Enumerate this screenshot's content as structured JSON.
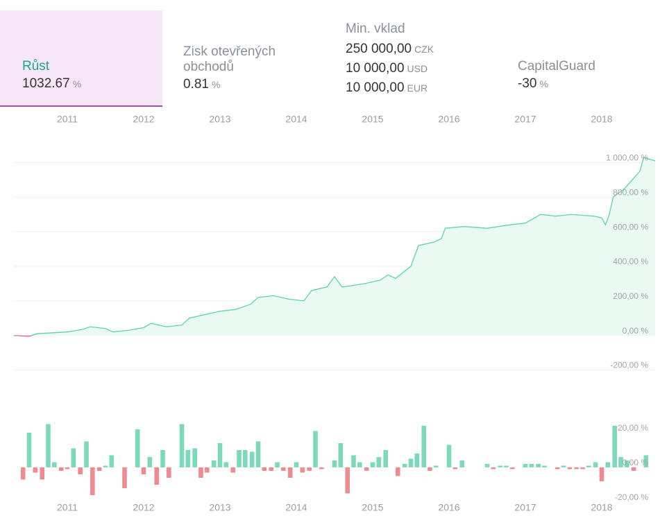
{
  "stats": [
    {
      "label": "Růst",
      "value": "1032.67",
      "unit": "%"
    },
    {
      "label": "Zisk otevřených obchodů",
      "value": "0.81",
      "unit": "%"
    },
    {
      "label": "Min. vklad",
      "deposits": [
        {
          "amount": "250 000,00",
          "currency": "CZK"
        },
        {
          "amount": "10 000,00",
          "currency": "USD"
        },
        {
          "amount": "10 000,00",
          "currency": "EUR"
        }
      ]
    },
    {
      "label": "CapitalGuard",
      "value": "-30",
      "unit": "%"
    }
  ],
  "chart_data": [
    {
      "type": "line",
      "color": "#5fd3a8",
      "negative_color": "#e06070",
      "fill": "#eafaf3",
      "grid": true,
      "x": [
        2010.3,
        2010.5,
        2010.6,
        2010.8,
        2011.0,
        2011.2,
        2011.3,
        2011.5,
        2011.6,
        2011.8,
        2012.0,
        2012.1,
        2012.3,
        2012.5,
        2012.6,
        2012.8,
        2013.0,
        2013.2,
        2013.4,
        2013.5,
        2013.7,
        2013.9,
        2014.1,
        2014.2,
        2014.4,
        2014.5,
        2014.6,
        2014.9,
        2015.1,
        2015.2,
        2015.3,
        2015.5,
        2015.6,
        2015.8,
        2015.9,
        2015.95,
        2016.2,
        2016.5,
        2016.8,
        2017.0,
        2017.2,
        2017.4,
        2017.6,
        2017.9,
        2018.0,
        2018.05,
        2018.1,
        2018.15,
        2018.3,
        2018.5,
        2018.55,
        2018.7
      ],
      "values": [
        0,
        -5,
        10,
        15,
        20,
        35,
        50,
        40,
        20,
        30,
        45,
        70,
        50,
        60,
        100,
        120,
        140,
        150,
        180,
        220,
        230,
        210,
        200,
        260,
        280,
        340,
        280,
        300,
        320,
        350,
        330,
        400,
        520,
        540,
        560,
        620,
        630,
        620,
        640,
        650,
        700,
        690,
        700,
        690,
        680,
        640,
        700,
        800,
        850,
        950,
        1030,
        1010
      ],
      "xlim": [
        2010.3,
        2018.7
      ],
      "xticks": [
        2011,
        2012,
        2013,
        2014,
        2015,
        2016,
        2017,
        2018
      ],
      "ylim": [
        -250,
        1050
      ],
      "yticks": [
        {
          "value": 1000,
          "label": "1 000,00 %"
        },
        {
          "value": 800,
          "label": "800,00 %"
        },
        {
          "value": 600,
          "label": "600,00 %"
        },
        {
          "value": 400,
          "label": "400,00 %"
        },
        {
          "value": 200,
          "label": "200,00 %"
        },
        {
          "value": 0,
          "label": "0,00 %"
        },
        {
          "value": -200,
          "label": "-200,00 %"
        }
      ]
    },
    {
      "type": "bar",
      "color": "#7dd9bb",
      "negative_color": "#f08a91",
      "x": [
        2010.42,
        2010.5,
        2010.58,
        2010.67,
        2010.75,
        2010.83,
        2010.92,
        2011.0,
        2011.08,
        2011.17,
        2011.25,
        2011.33,
        2011.42,
        2011.5,
        2011.58,
        2011.67,
        2011.75,
        2011.83,
        2011.92,
        2012.0,
        2012.08,
        2012.17,
        2012.25,
        2012.33,
        2012.42,
        2012.5,
        2012.58,
        2012.67,
        2012.75,
        2012.83,
        2012.92,
        2013.0,
        2013.08,
        2013.17,
        2013.25,
        2013.33,
        2013.42,
        2013.5,
        2013.58,
        2013.67,
        2013.75,
        2013.83,
        2013.92,
        2014.0,
        2014.08,
        2014.17,
        2014.25,
        2014.33,
        2014.42,
        2014.5,
        2014.58,
        2014.67,
        2014.75,
        2014.83,
        2014.92,
        2015.0,
        2015.08,
        2015.17,
        2015.25,
        2015.33,
        2015.42,
        2015.5,
        2015.58,
        2015.67,
        2015.75,
        2015.83,
        2015.92,
        2016.0,
        2016.08,
        2016.17,
        2016.25,
        2016.33,
        2016.42,
        2016.5,
        2016.58,
        2016.67,
        2016.75,
        2016.83,
        2016.92,
        2017.0,
        2017.08,
        2017.17,
        2017.25,
        2017.33,
        2017.42,
        2017.5,
        2017.58,
        2017.67,
        2017.75,
        2017.83,
        2017.92,
        2018.0,
        2018.08,
        2018.17,
        2018.25,
        2018.33,
        2018.42,
        2018.5,
        2018.58
      ],
      "values": [
        -7,
        20,
        -3,
        -7,
        25,
        3,
        -2,
        -1,
        11,
        -4,
        15,
        -16,
        -2,
        1,
        7,
        0,
        -12,
        0,
        22,
        -4,
        6,
        -10,
        10,
        -6,
        0,
        25,
        10,
        11,
        -6,
        -3,
        4,
        14,
        3,
        -3,
        10,
        10,
        9,
        15,
        -2,
        -2,
        3,
        -2,
        -6,
        3,
        -3,
        -2,
        21,
        -1,
        0,
        4,
        14,
        -15,
        7,
        3,
        -2,
        3,
        6,
        10,
        0,
        -5,
        2,
        5,
        8,
        24,
        -2,
        1,
        0,
        13,
        -1,
        4,
        0,
        0,
        0,
        2,
        -1,
        1,
        1,
        -1,
        0,
        2,
        2,
        2,
        1,
        0,
        -1,
        1,
        -1,
        -1,
        -1,
        1,
        3,
        -8,
        3,
        24,
        6,
        4,
        -2,
        0,
        7
      ],
      "xlim": [
        2010.3,
        2018.7
      ],
      "xticks": [
        2011,
        2012,
        2013,
        2014,
        2015,
        2016,
        2017,
        2018
      ],
      "ylim": [
        -23,
        25
      ],
      "yticks": [
        {
          "value": 20,
          "label": "20,00 %"
        },
        {
          "value": 0,
          "label": "0,00 %"
        },
        {
          "value": -20,
          "label": "-20,00 %"
        }
      ]
    }
  ]
}
